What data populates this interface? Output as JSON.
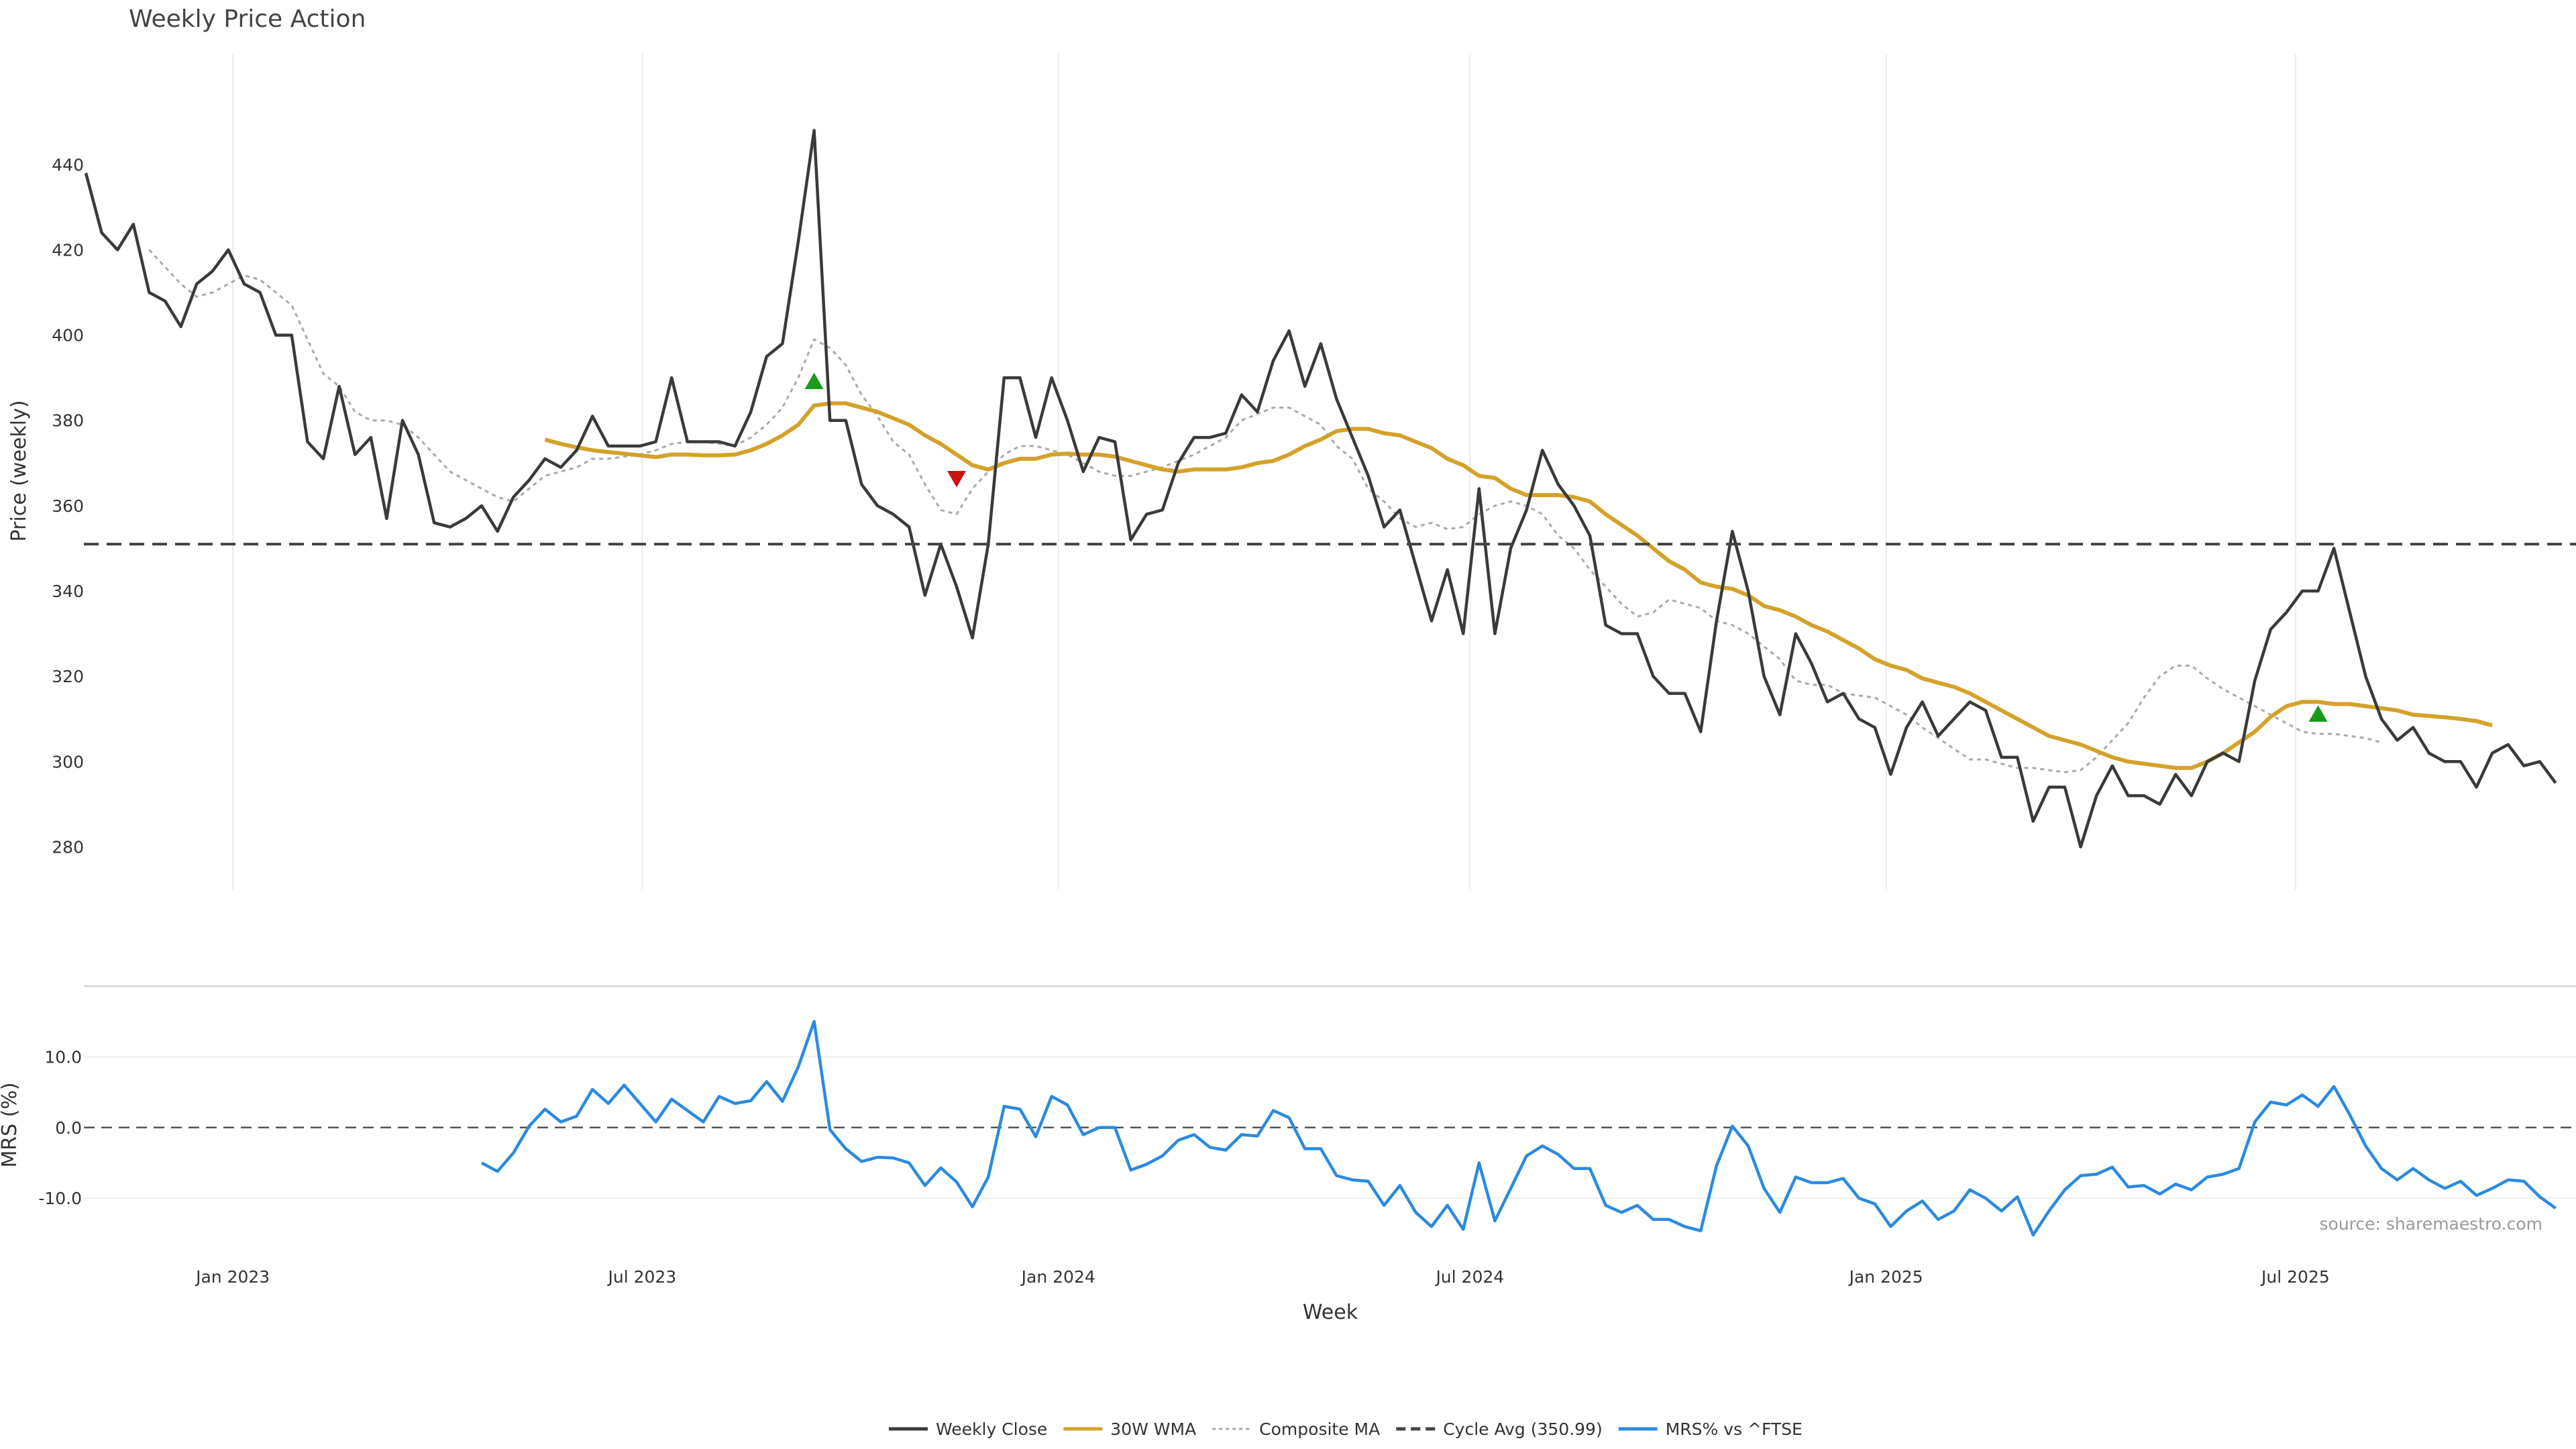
{
  "chart_data": [
    {
      "type": "line",
      "title": "Weekly Price Action",
      "ylabel": "Price (weekly)",
      "xlabel": "",
      "ylim": [
        270,
        466
      ],
      "yticks": [
        280,
        300,
        320,
        340,
        360,
        380,
        400,
        420,
        440
      ],
      "x_start": "2022-10-28",
      "x_step_days": 7,
      "xticks": [
        {
          "label": "Jan 2023",
          "date": "2023-01-01"
        },
        {
          "label": "Jul 2023",
          "date": "2023-07-01"
        },
        {
          "label": "Jan 2024",
          "date": "2024-01-01"
        },
        {
          "label": "Jul 2024",
          "date": "2024-07-01"
        },
        {
          "label": "Jan 2025",
          "date": "2025-01-01"
        },
        {
          "label": "Jul 2025",
          "date": "2025-07-01"
        }
      ],
      "grid": true,
      "series": [
        {
          "name": "Weekly Close",
          "color": "#3a3a3a",
          "style": "solid",
          "values": [
            438,
            424,
            420,
            426,
            410,
            408,
            402,
            412,
            415,
            420,
            412,
            410,
            400,
            400,
            375,
            371,
            388,
            372,
            376,
            357,
            380,
            372,
            356,
            355,
            357,
            360,
            354,
            362,
            366,
            371,
            369,
            373,
            381,
            374,
            374,
            374,
            375,
            390,
            375,
            375,
            375,
            374,
            382,
            395,
            398,
            422,
            448,
            380,
            380,
            365,
            360,
            358,
            355,
            339,
            351,
            341,
            329,
            351,
            390,
            390,
            376,
            390,
            380,
            368,
            376,
            375,
            352,
            358,
            359,
            370,
            376,
            376,
            377,
            386,
            382,
            394,
            401,
            388,
            398,
            385,
            376,
            367,
            355,
            359,
            346,
            333,
            345,
            330,
            364,
            330,
            350,
            359,
            373,
            365,
            360,
            353,
            332,
            330,
            330,
            320,
            316,
            316,
            307,
            333,
            354,
            340,
            320,
            311,
            330,
            323,
            314,
            316,
            310,
            308,
            297,
            308,
            314,
            306,
            310,
            314,
            312,
            301,
            301,
            286,
            294,
            294,
            280,
            292,
            299,
            292,
            292,
            290,
            297,
            292,
            300,
            302,
            300,
            319,
            331,
            335,
            340,
            340,
            350,
            335,
            320,
            310,
            305,
            308,
            302,
            300,
            300,
            294,
            302,
            304,
            299,
            300,
            295
          ]
        },
        {
          "name": "30W WMA",
          "color": "#d4a22a",
          "style": "solid",
          "start_index": 29,
          "values": [
            375.5,
            374.5,
            373.7,
            373,
            372.6,
            372.2,
            371.8,
            371.4,
            372,
            372,
            371.8,
            371.8,
            372,
            373,
            374.5,
            376.5,
            379,
            383.5,
            384,
            384,
            383,
            382,
            380.5,
            379,
            376.5,
            374.5,
            372,
            369.5,
            368.5,
            370,
            371,
            371,
            372,
            372.2,
            372,
            372,
            371.5,
            370.5,
            369.5,
            368.5,
            368,
            368.5,
            368.5,
            368.5,
            369,
            370,
            370.5,
            372,
            374,
            375.5,
            377.5,
            378,
            378,
            377,
            376.5,
            375,
            373.5,
            371,
            369.5,
            367,
            366.5,
            364,
            362.5,
            362.5,
            362.5,
            362,
            361,
            358,
            355.5,
            353,
            350,
            347,
            345,
            342,
            341,
            340.5,
            339,
            336.5,
            335.5,
            334,
            332,
            330.5,
            328.5,
            326.5,
            324,
            322.5,
            321.5,
            319.5,
            318.5,
            317.5,
            316,
            314,
            312,
            310,
            308,
            306,
            305,
            304,
            302.5,
            301,
            300,
            299.5,
            299,
            298.5,
            298.5,
            300,
            302,
            304.5,
            307,
            310.5,
            313,
            314,
            314,
            313.5,
            313.5,
            313,
            312.5,
            312,
            311,
            310.7,
            310.4,
            310,
            309.5,
            308.5
          ]
        },
        {
          "name": "Composite MA",
          "color": "#aaaaaa",
          "style": "dotted",
          "start_index": 4,
          "values": [
            420,
            416,
            412,
            409,
            410,
            412,
            414,
            413,
            410,
            407,
            399,
            391,
            388,
            382,
            380,
            380,
            379,
            376,
            372,
            368,
            366,
            364,
            362,
            361,
            364,
            367,
            368,
            369,
            371,
            371,
            371.5,
            372,
            373,
            374.5,
            375,
            375,
            374.5,
            374,
            376,
            379,
            383,
            390,
            399,
            397,
            393,
            386,
            381,
            375,
            372,
            365,
            359,
            358,
            364,
            368,
            372,
            374,
            374,
            373,
            372,
            370,
            368,
            367,
            367,
            368,
            369,
            370.5,
            372,
            374,
            376,
            380,
            381.5,
            383,
            383,
            381,
            379,
            374,
            371,
            364,
            361,
            357,
            355,
            356,
            354.5,
            355,
            358,
            360,
            361,
            360,
            358,
            353,
            350,
            345,
            341,
            337,
            334,
            335,
            338,
            337,
            336,
            333,
            332,
            330,
            327,
            324,
            319,
            318,
            318,
            316,
            315.5,
            315,
            313,
            311,
            308,
            305.5,
            303,
            300.5,
            300.5,
            299.5,
            298.5,
            298.5,
            298,
            297.5,
            298,
            301,
            305,
            309,
            315,
            320,
            322.5,
            322.5,
            319.5,
            317,
            315,
            313,
            311,
            309,
            307,
            306.5,
            306.5,
            306,
            305.5,
            304.5
          ]
        },
        {
          "name": "Cycle Avg (350.99)",
          "color": "#444444",
          "style": "dashed",
          "constant": 350.99
        }
      ],
      "markers": [
        {
          "shape": "up-triangle",
          "color": "#1a9a1a",
          "index": 46,
          "value": 389
        },
        {
          "shape": "down-triangle",
          "color": "#cc1111",
          "index": 55,
          "value": 366.5
        },
        {
          "shape": "up-triangle",
          "color": "#1a9a1a",
          "index": 141,
          "value": 311
        }
      ]
    },
    {
      "type": "line",
      "xlabel": "Week",
      "ylabel": "MRS (%)",
      "ylim": [
        -17,
        20
      ],
      "yticks": [
        {
          "value": -10,
          "label": "-10.0"
        },
        {
          "value": 0,
          "label": "0.0"
        },
        {
          "value": 10,
          "label": "10.0"
        }
      ],
      "zero_line": true,
      "series": [
        {
          "name": "MRS% vs ^FTSE",
          "color": "#2a8ae0",
          "style": "solid",
          "start_index": 25,
          "values": [
            -5,
            -6.2,
            -3.6,
            0.2,
            2.6,
            0.8,
            1.6,
            5.4,
            3.4,
            6,
            3.4,
            0.8,
            4,
            2.4,
            0.8,
            4.4,
            3.4,
            3.8,
            6.5,
            3.7,
            8.6,
            15,
            -0.3,
            -3,
            -4.8,
            -4.2,
            -4.3,
            -5,
            -8.2,
            -5.7,
            -7.7,
            -11.2,
            -7,
            3,
            2.6,
            -1.3,
            4.4,
            3.2,
            -1,
            0,
            0,
            -6,
            -5.2,
            -4,
            -1.8,
            -1,
            -2.8,
            -3.2,
            -1,
            -1.2,
            2.4,
            1.4,
            -3,
            -3,
            -6.8,
            -7.4,
            -7.6,
            -11,
            -8.2,
            -12,
            -14,
            -11,
            -14.4,
            -5,
            -13.2,
            -8.6,
            -4,
            -2.6,
            -3.8,
            -5.8,
            -5.8,
            -11,
            -12,
            -11,
            -13,
            -13,
            -14,
            -14.6,
            -5.4,
            0.2,
            -2.6,
            -8.6,
            -12,
            -7,
            -7.8,
            -7.8,
            -7.2,
            -10,
            -10.8,
            -14,
            -11.8,
            -10.4,
            -13,
            -11.8,
            -8.8,
            -10,
            -11.8,
            -9.8,
            -15.2,
            -11.8,
            -8.8,
            -6.8,
            -6.6,
            -5.6,
            -8.4,
            -8.2,
            -9.4,
            -8,
            -8.8,
            -7,
            -6.6,
            -5.8,
            0.8,
            3.6,
            3.2,
            4.6,
            3,
            5.8,
            1.8,
            -2.6,
            -5.8,
            -7.4,
            -5.8,
            -7.4,
            -8.6,
            -7.6,
            -9.6,
            -8.6,
            -7.4,
            -7.6,
            -9.8,
            -11.4
          ]
        }
      ]
    }
  ],
  "legend": [
    {
      "label": "Weekly Close",
      "color": "#3a3a3a",
      "style": "solid"
    },
    {
      "label": "30W WMA",
      "color": "#d4a22a",
      "style": "solid"
    },
    {
      "label": "Composite MA",
      "color": "#aaaaaa",
      "style": "dotted"
    },
    {
      "label": "Cycle Avg (350.99)",
      "color": "#444444",
      "style": "dashed"
    },
    {
      "label": "MRS% vs ^FTSE",
      "color": "#2a8ae0",
      "style": "solid"
    }
  ],
  "legend_position": "bottom-center",
  "source_note": "source: sharemaestro.com"
}
